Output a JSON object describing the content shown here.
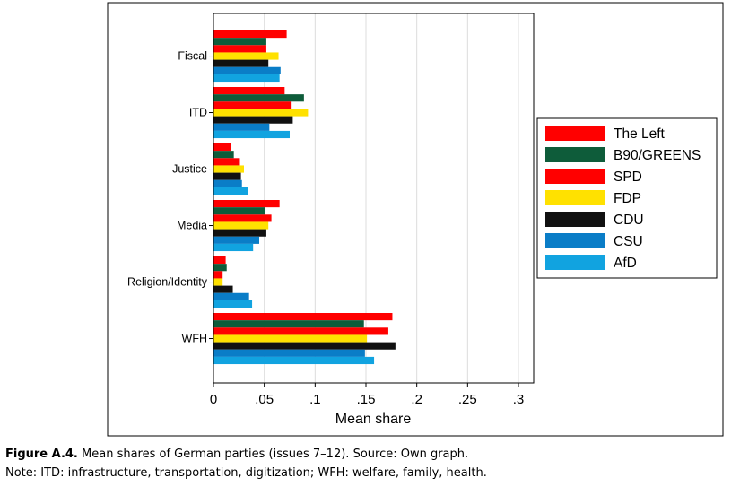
{
  "chart_data": {
    "type": "bar",
    "orientation": "horizontal",
    "categories": [
      "Fiscal",
      "ITD",
      "Justice",
      "Media",
      "Religion/Identity",
      "WFH"
    ],
    "series": [
      {
        "name": "The Left",
        "color": "#ff0000",
        "values": [
          0.072,
          0.07,
          0.017,
          0.065,
          0.012,
          0.176
        ]
      },
      {
        "name": "B90/GREENS",
        "color": "#0e5c3a",
        "values": [
          0.052,
          0.089,
          0.02,
          0.051,
          0.013,
          0.148
        ]
      },
      {
        "name": "SPD",
        "color": "#ff0000",
        "values": [
          0.052,
          0.076,
          0.026,
          0.057,
          0.009,
          0.172
        ]
      },
      {
        "name": "FDP",
        "color": "#ffe100",
        "values": [
          0.064,
          0.093,
          0.03,
          0.054,
          0.009,
          0.151
        ]
      },
      {
        "name": "CDU",
        "color": "#111111",
        "values": [
          0.054,
          0.078,
          0.027,
          0.052,
          0.019,
          0.179
        ]
      },
      {
        "name": "CSU",
        "color": "#0a7dc7",
        "values": [
          0.066,
          0.055,
          0.028,
          0.045,
          0.035,
          0.149
        ]
      },
      {
        "name": "AfD",
        "color": "#11a3e0",
        "values": [
          0.065,
          0.075,
          0.034,
          0.039,
          0.038,
          0.158
        ]
      }
    ],
    "xlabel": "Mean share",
    "ylabel": "",
    "xlim": [
      0,
      0.315
    ],
    "xticks": [
      0,
      0.05,
      0.1,
      0.15,
      0.2,
      0.25,
      0.3
    ],
    "xtick_labels": [
      "0",
      ".05",
      ".1",
      ".15",
      ".2",
      ".25",
      ".3"
    ],
    "grid": true,
    "legend_position": "right"
  },
  "caption": {
    "figure_label": "Figure A.4.",
    "text": " Mean shares of German parties (issues 7–12). Source: Own graph.",
    "note": "Note: ITD: infrastructure, transportation, digitization; WFH: welfare, family, health."
  }
}
